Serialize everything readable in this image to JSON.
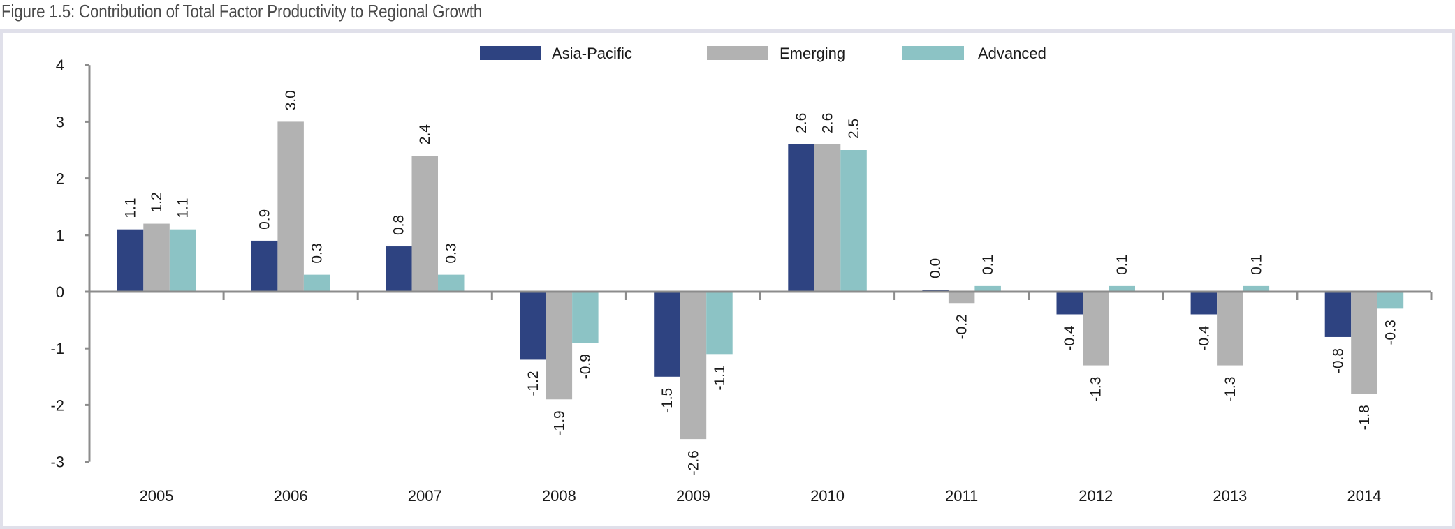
{
  "figure": {
    "title": "Figure 1.5: Contribution of Total Factor Productivity to Regional Growth"
  },
  "chart_data": {
    "type": "bar",
    "title": "Figure 1.5: Contribution of Total Factor Productivity to Regional Growth",
    "xlabel": "",
    "ylabel": "",
    "categories": [
      "2005",
      "2006",
      "2007",
      "2008",
      "2009",
      "2010",
      "2011",
      "2012",
      "2013",
      "2014"
    ],
    "series": [
      {
        "name": "Asia-Pacific",
        "color": "#2e4381",
        "values": [
          1.1,
          0.9,
          0.8,
          -1.2,
          -1.5,
          2.6,
          0.0,
          -0.4,
          -0.4,
          -0.8
        ],
        "labels": [
          "1.1",
          "0.9",
          "0.8",
          "-1.2",
          "-1.5",
          "2.6",
          "0.0",
          "-0.4",
          "-0.4",
          "-0.8"
        ]
      },
      {
        "name": "Emerging",
        "color": "#b2b2b2",
        "values": [
          1.2,
          3.0,
          2.4,
          -1.9,
          -2.6,
          2.6,
          -0.2,
          -1.3,
          -1.3,
          -1.8
        ],
        "labels": [
          "1.2",
          "3.0",
          "2.4",
          "-1.9",
          "-2.6",
          "2.6",
          "-0.2",
          "-1.3",
          "-1.3",
          "-1.8"
        ]
      },
      {
        "name": "Advanced",
        "color": "#8cc3c5",
        "values": [
          1.1,
          0.3,
          0.3,
          -0.9,
          -1.1,
          2.5,
          0.1,
          0.1,
          0.1,
          -0.3
        ],
        "labels": [
          "1.1",
          "0.3",
          "0.3",
          "-0.9",
          "-1.1",
          "2.5",
          "0.1",
          "0.1",
          "0.1",
          "-0.3"
        ]
      }
    ],
    "ylim": [
      -3,
      4
    ],
    "yticks": [
      "4",
      "3",
      "2",
      "1",
      "0",
      "-1",
      "-2",
      "-3"
    ],
    "ytick_values": [
      4,
      3,
      2,
      1,
      0,
      -1,
      -2,
      -3
    ],
    "grid": false,
    "legend_position": "top-center",
    "data_label_orientation": "rotated-vertical"
  }
}
